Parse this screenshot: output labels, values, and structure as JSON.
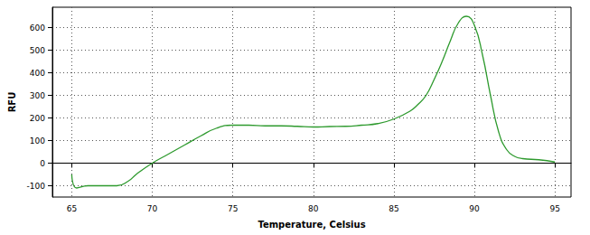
{
  "chart_data": {
    "type": "line",
    "x_label": "Temperature, Celsius",
    "y_label": "RFU",
    "x": [
      65,
      65.3,
      66,
      67,
      67.8,
      68.5,
      69,
      70,
      71,
      72,
      73,
      74,
      75,
      76,
      77,
      78,
      79,
      80,
      81,
      82,
      83,
      84,
      85,
      86,
      86.5,
      87,
      87.5,
      88,
      88.5,
      89,
      89.5,
      90,
      90.5,
      91,
      91.5,
      92,
      92.5,
      93,
      94,
      95
    ],
    "values": [
      -50,
      -110,
      -100,
      -100,
      -100,
      -80,
      -50,
      0,
      40,
      80,
      120,
      155,
      168,
      168,
      165,
      165,
      163,
      160,
      162,
      163,
      168,
      175,
      195,
      230,
      260,
      300,
      370,
      450,
      540,
      620,
      650,
      610,
      480,
      300,
      140,
      60,
      30,
      20,
      15,
      5
    ],
    "color": "#2e9a2e",
    "xlim": [
      63.8,
      96
    ],
    "ylim": [
      -150,
      690
    ],
    "xticks": [
      65,
      70,
      75,
      80,
      85,
      90,
      95
    ],
    "yticks": [
      -100,
      0,
      100,
      200,
      300,
      400,
      500,
      600
    ],
    "grid": true
  }
}
